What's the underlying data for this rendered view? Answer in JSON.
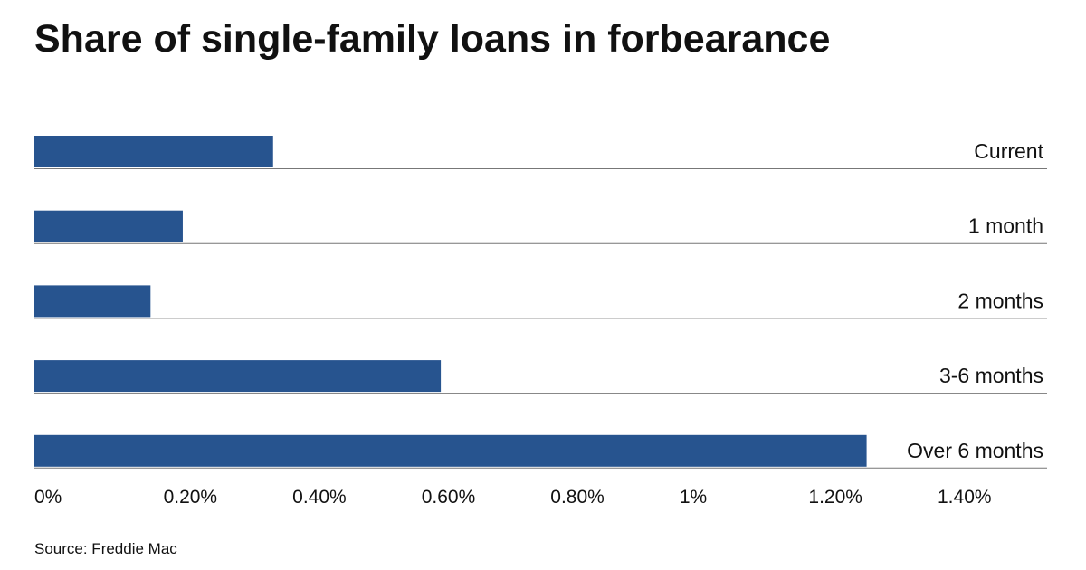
{
  "chart_data": {
    "type": "bar",
    "orientation": "horizontal",
    "title": "Share of single-family loans in forbearance",
    "categories": [
      "Current",
      "1 month",
      "2 months",
      "3-6 months",
      "Over 6 months"
    ],
    "values": [
      0.37,
      0.23,
      0.18,
      0.63,
      1.29
    ],
    "color": "#27548f",
    "xlim": [
      0,
      1.4
    ],
    "xticks": [
      {
        "value": 0,
        "label": "0%"
      },
      {
        "value": 0.2,
        "label": "0.20%"
      },
      {
        "value": 0.4,
        "label": "0.40%"
      },
      {
        "value": 0.6,
        "label": "0.60%"
      },
      {
        "value": 0.8,
        "label": "0.80%"
      },
      {
        "value": 1,
        "label": "1%"
      },
      {
        "value": 1.2,
        "label": "1.20%"
      },
      {
        "value": 1.4,
        "label": "1.40%"
      }
    ],
    "source": "Source: Freddie Mac"
  }
}
